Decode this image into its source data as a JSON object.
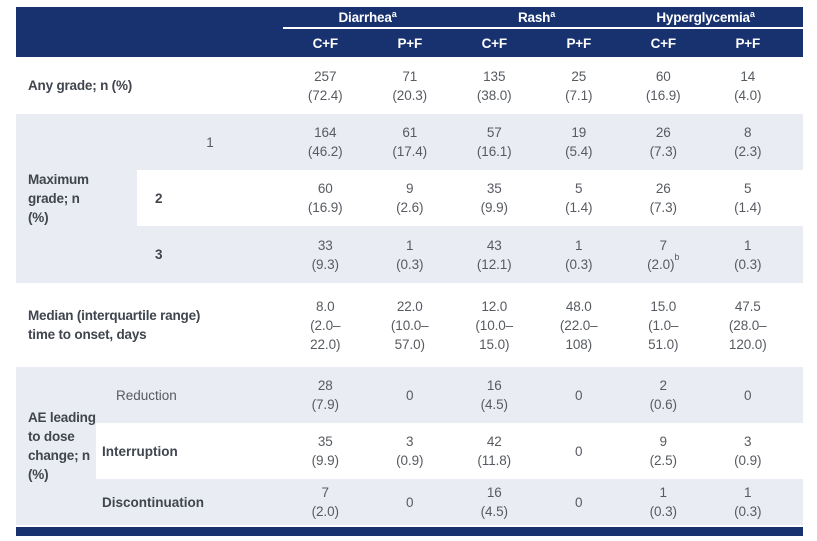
{
  "colors": {
    "header_navy": "#17326e",
    "row_gray": "#e9edf3",
    "header_text": "#ffffff",
    "label_text": "#40454e",
    "data_text": "#575b61"
  },
  "header": {
    "groups": [
      {
        "label": "Diarrhea",
        "sup": "a"
      },
      {
        "label": "Rash",
        "sup": "a"
      },
      {
        "label": "Hyperglycemia",
        "sup": "a"
      }
    ],
    "cols": [
      "C+F",
      "P+F",
      "C+F",
      "P+F",
      "C+F",
      "P+F"
    ]
  },
  "rows": {
    "any_grade": {
      "label": "Any grade; n (%)",
      "cells": [
        "257\n(72.4)",
        "71\n(20.3)",
        "135\n(38.0)",
        "25\n(7.1)",
        "60\n(16.9)",
        "14\n(4.0)"
      ]
    },
    "max_grade": {
      "label": "Maximum\ngrade; n\n(%)",
      "sub": [
        {
          "label": "1",
          "cells": [
            "164\n(46.2)",
            "61\n(17.4)",
            "57\n(16.1)",
            "19\n(5.4)",
            "26\n(7.3)",
            "8\n(2.3)"
          ]
        },
        {
          "label": "2",
          "cells": [
            "60\n(16.9)",
            "9\n(2.6)",
            "35\n(9.9)",
            "5\n(1.4)",
            "26\n(7.3)",
            "5\n(1.4)"
          ]
        },
        {
          "label": "3",
          "cells": [
            "33\n(9.3)",
            "1\n(0.3)",
            "43\n(12.1)",
            "1\n(0.3)",
            "",
            "1\n(0.3)"
          ],
          "special": {
            "top": "7",
            "bottom": "(2.0)",
            "sup": "b"
          }
        }
      ]
    },
    "median": {
      "label": "Median (interquartile range)\ntime to onset, days",
      "cells": [
        "8.0\n(2.0–\n22.0)",
        "22.0\n(10.0–\n57.0)",
        "12.0\n(10.0–\n15.0)",
        "48.0\n(22.0–\n108)",
        "15.0\n(1.0–\n51.0)",
        "47.5\n(28.0–\n120.0)"
      ]
    },
    "ae": {
      "label": "AE leading\nto dose\nchange; n\n(%)",
      "sub": [
        {
          "label": "Reduction",
          "cells": [
            "28\n(7.9)",
            "0",
            "16\n(4.5)",
            "0",
            "2\n(0.6)",
            "0"
          ]
        },
        {
          "label": "Interruption",
          "cells": [
            "35\n(9.9)",
            "3\n(0.9)",
            "42\n(11.8)",
            "0",
            "9\n(2.5)",
            "3\n(0.9)"
          ]
        },
        {
          "label": "Discontinuation",
          "cells": [
            "7\n(2.0)",
            "0",
            "16\n(4.5)",
            "0",
            "1\n(0.3)",
            "1\n(0.3)"
          ]
        }
      ]
    }
  }
}
